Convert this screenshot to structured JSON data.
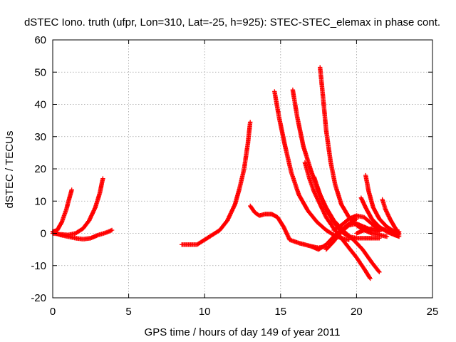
{
  "chart_data": {
    "type": "scatter",
    "title": "dSTEC Iono. truth (ufpr, Lon=310, Lat=-25, h=925): STEC-STEC_elemax in phase cont.",
    "xlabel": "GPS time / hours of day 149 of year 2011",
    "ylabel": "dSTEC  / TECUs",
    "xlim": [
      0,
      25
    ],
    "ylim": [
      -20,
      60
    ],
    "xticks": [
      0,
      5,
      10,
      15,
      20,
      25
    ],
    "yticks": [
      -20,
      -10,
      0,
      10,
      20,
      30,
      40,
      50,
      60
    ],
    "grid": true,
    "marker": "+",
    "color": "#ff0000",
    "series": [
      {
        "x": [
          0.0,
          0.3,
          0.6,
          0.9,
          1.1,
          1.25
        ],
        "y": [
          0.5,
          1.0,
          3.5,
          7.5,
          11.0,
          13.5
        ]
      },
      {
        "x": [
          0.0,
          0.5,
          1.0,
          1.5,
          2.0,
          2.5,
          3.0,
          3.5,
          3.9
        ],
        "y": [
          0.5,
          -0.5,
          -1.0,
          -1.5,
          -1.8,
          -1.5,
          -0.5,
          0.2,
          1.0
        ]
      },
      {
        "x": [
          0.0,
          0.5,
          1.0,
          1.5,
          2.0,
          2.4,
          2.8,
          3.1,
          3.3
        ],
        "y": [
          0.0,
          -0.3,
          -0.5,
          0.0,
          1.5,
          4.0,
          8.0,
          12.5,
          17.0
        ]
      },
      {
        "x": [
          8.5,
          9.0,
          9.5,
          10.0,
          10.5,
          11.0,
          11.5,
          12.0,
          12.3,
          12.6,
          12.85,
          13.0
        ],
        "y": [
          -3.5,
          -3.5,
          -3.5,
          -2.0,
          -0.5,
          1.0,
          4.0,
          9.0,
          14.0,
          20.0,
          28.0,
          34.5
        ]
      },
      {
        "x": [
          13.0,
          13.3,
          13.6,
          14.0,
          14.4,
          14.8,
          15.2,
          15.6,
          16.2,
          17.0,
          17.5,
          18.0
        ],
        "y": [
          8.5,
          6.5,
          5.5,
          6.0,
          6.0,
          5.0,
          2.0,
          -2.0,
          -3.0,
          -4.0,
          -4.5,
          -4.0
        ]
      },
      {
        "x": [
          14.6,
          14.9,
          15.3,
          15.7,
          16.2,
          16.8,
          17.4,
          18.0,
          18.5,
          19.0,
          19.5
        ],
        "y": [
          44.0,
          36.0,
          27.0,
          19.0,
          12.0,
          7.0,
          3.5,
          1.0,
          -0.5,
          -1.5,
          -2.0
        ]
      },
      {
        "x": [
          15.8,
          16.1,
          16.5,
          17.0,
          17.5,
          18.0,
          18.5,
          19.2,
          19.8,
          20.4,
          21.0,
          21.5
        ],
        "y": [
          44.5,
          36.0,
          27.0,
          19.5,
          13.0,
          8.0,
          4.0,
          0.5,
          -2.0,
          -5.0,
          -9.0,
          -12.0
        ]
      },
      {
        "x": [
          16.6,
          16.9,
          17.2,
          17.6,
          18.0,
          18.5,
          19.0,
          19.5,
          20.0,
          20.5,
          20.9
        ],
        "y": [
          22.0,
          17.0,
          13.0,
          9.0,
          5.0,
          1.5,
          -1.5,
          -4.5,
          -7.5,
          -11.0,
          -14.0
        ]
      },
      {
        "x": [
          17.6,
          17.8,
          18.0,
          18.3,
          18.6,
          19.0,
          19.5,
          20.0,
          20.5,
          21.0,
          21.5,
          22.0
        ],
        "y": [
          51.5,
          42.0,
          32.0,
          22.0,
          15.0,
          9.0,
          5.0,
          2.5,
          1.0,
          0.0,
          -0.5,
          -1.0
        ]
      },
      {
        "x": [
          17.2,
          17.6,
          18.0,
          18.5,
          19.0,
          19.5,
          20.0,
          20.5,
          21.0,
          21.5
        ],
        "y": [
          17.5,
          12.0,
          7.5,
          3.5,
          0.5,
          -1.0,
          -1.5,
          -1.5,
          -1.5,
          -1.5
        ]
      },
      {
        "x": [
          17.0,
          17.5,
          18.0,
          18.5,
          19.0,
          19.5,
          20.0
        ],
        "y": [
          -4.0,
          -5.0,
          -3.5,
          -1.0,
          1.0,
          3.0,
          4.5
        ]
      },
      {
        "x": [
          18.0,
          18.5,
          19.0,
          19.5,
          20.0,
          20.5,
          21.0,
          21.5
        ],
        "y": [
          -5.0,
          -2.5,
          0.5,
          2.5,
          3.0,
          2.0,
          1.0,
          0.5
        ]
      },
      {
        "x": [
          18.5,
          19.0,
          19.5,
          20.0,
          20.5,
          21.0,
          21.5
        ],
        "y": [
          1.0,
          2.5,
          4.5,
          5.5,
          5.0,
          3.0,
          1.0
        ]
      },
      {
        "x": [
          20.3,
          20.6,
          21.0,
          21.5,
          22.0,
          22.5,
          22.8
        ],
        "y": [
          11.0,
          8.0,
          4.5,
          2.0,
          0.5,
          -0.5,
          -1.0
        ]
      },
      {
        "x": [
          20.6,
          20.8,
          21.1,
          21.5,
          22.0,
          22.5,
          22.8
        ],
        "y": [
          18.0,
          13.0,
          8.0,
          4.5,
          2.0,
          0.5,
          -0.5
        ]
      },
      {
        "x": [
          21.7,
          21.9,
          22.2,
          22.5,
          22.8
        ],
        "y": [
          10.5,
          7.5,
          4.5,
          2.0,
          0.0
        ]
      },
      {
        "x": [
          20.0,
          20.5,
          21.0,
          21.5,
          22.0,
          22.5,
          22.8
        ],
        "y": [
          0.0,
          1.0,
          1.5,
          1.5,
          1.0,
          0.5,
          0.5
        ]
      }
    ]
  }
}
